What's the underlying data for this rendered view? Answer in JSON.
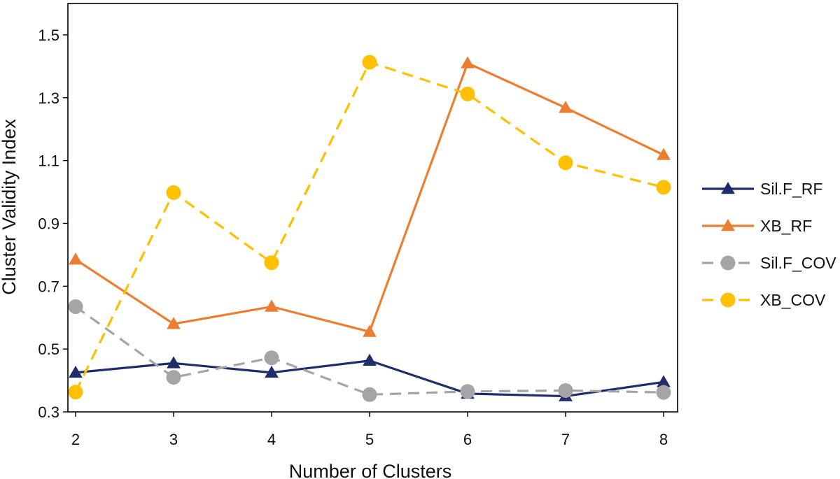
{
  "chart_data": {
    "type": "line",
    "title": "",
    "xlabel": "Number of Clusters",
    "ylabel": "Cluster Validity Index",
    "x": [
      2,
      3,
      4,
      5,
      6,
      7,
      8
    ],
    "x_tick_labels": [
      "2",
      "3",
      "4",
      "5",
      "6",
      "7",
      "8"
    ],
    "ylim": [
      0.3,
      1.6
    ],
    "y_ticks": [
      0.3,
      0.5,
      0.7,
      0.9,
      1.1,
      1.3,
      1.5
    ],
    "y_tick_labels": [
      "0.3",
      "0.5",
      "0.7",
      "0.9",
      "1.1",
      "1.3",
      "1.5"
    ],
    "grid": false,
    "legend_position": "right",
    "series": [
      {
        "name": "Sil.F_RF",
        "values": [
          0.425,
          0.455,
          0.425,
          0.463,
          0.358,
          0.35,
          0.395
        ],
        "color": "#1f2d6b",
        "marker": "triangle",
        "dash": "solid"
      },
      {
        "name": "XB_RF",
        "values": [
          0.785,
          0.58,
          0.635,
          0.555,
          1.41,
          1.268,
          1.118
        ],
        "color": "#ed7d31",
        "marker": "triangle",
        "dash": "solid"
      },
      {
        "name": "Sil.F_COV",
        "values": [
          0.635,
          0.41,
          0.472,
          0.355,
          0.365,
          0.368,
          0.362
        ],
        "color": "#a5a5a5",
        "marker": "circle",
        "dash": "dashed"
      },
      {
        "name": "XB_COV",
        "values": [
          0.363,
          0.998,
          0.775,
          1.413,
          1.312,
          1.093,
          1.015
        ],
        "color": "#ffc000",
        "marker": "circle",
        "dash": "dashed"
      }
    ]
  }
}
